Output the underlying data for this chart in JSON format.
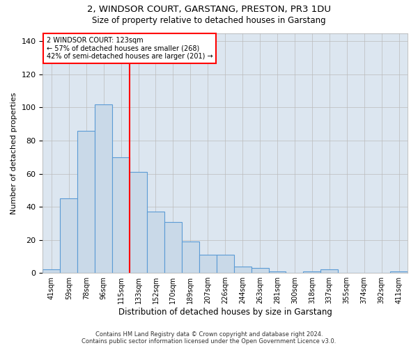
{
  "title1": "2, WINDSOR COURT, GARSTANG, PRESTON, PR3 1DU",
  "title2": "Size of property relative to detached houses in Garstang",
  "xlabel": "Distribution of detached houses by size in Garstang",
  "ylabel": "Number of detached properties",
  "categories": [
    "41sqm",
    "59sqm",
    "78sqm",
    "96sqm",
    "115sqm",
    "133sqm",
    "152sqm",
    "170sqm",
    "189sqm",
    "207sqm",
    "226sqm",
    "244sqm",
    "263sqm",
    "281sqm",
    "300sqm",
    "318sqm",
    "337sqm",
    "355sqm",
    "374sqm",
    "392sqm",
    "411sqm"
  ],
  "values": [
    2,
    45,
    86,
    102,
    70,
    61,
    37,
    31,
    19,
    11,
    11,
    4,
    3,
    1,
    0,
    1,
    2,
    0,
    0,
    0,
    1
  ],
  "bar_color": "#c9d9e8",
  "bar_edge_color": "#5b9bd5",
  "vline_color": "red",
  "annotation_title": "2 WINDSOR COURT: 123sqm",
  "annotation_line2": "← 57% of detached houses are smaller (268)",
  "annotation_line3": "42% of semi-detached houses are larger (201) →",
  "ylim": [
    0,
    145
  ],
  "yticks": [
    0,
    20,
    40,
    60,
    80,
    100,
    120,
    140
  ],
  "grid_color": "#bbbbbb",
  "bg_color": "#dce6f0",
  "footer_line1": "Contains HM Land Registry data © Crown copyright and database right 2024.",
  "footer_line2": "Contains public sector information licensed under the Open Government Licence v3.0."
}
